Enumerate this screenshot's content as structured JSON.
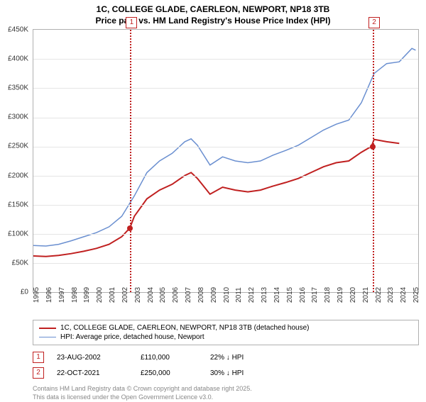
{
  "title_line1": "1C, COLLEGE GLADE, CAERLEON, NEWPORT, NP18 3TB",
  "title_line2": "Price paid vs. HM Land Registry's House Price Index (HPI)",
  "chart": {
    "type": "line",
    "background_color": "#ffffff",
    "grid_color": "#e5e5e5",
    "border_color": "#b0b0b0",
    "x_range": [
      1995,
      2025.5
    ],
    "x_ticks": [
      1995,
      1996,
      1997,
      1998,
      1999,
      2000,
      2001,
      2002,
      2003,
      2004,
      2005,
      2006,
      2007,
      2008,
      2009,
      2010,
      2011,
      2012,
      2013,
      2014,
      2015,
      2016,
      2017,
      2018,
      2019,
      2020,
      2021,
      2022,
      2023,
      2024,
      2025
    ],
    "x_fontsize": 10,
    "y_range": [
      0,
      450000
    ],
    "y_ticks": [
      0,
      50000,
      100000,
      150000,
      200000,
      250000,
      300000,
      350000,
      400000,
      450000
    ],
    "y_tick_labels": [
      "£0",
      "£50K",
      "£100K",
      "£150K",
      "£200K",
      "£250K",
      "£300K",
      "£350K",
      "£400K",
      "£450K"
    ],
    "y_fontsize": 10,
    "series": [
      {
        "name": "price_paid",
        "label": "1C, COLLEGE GLADE, CAERLEON, NEWPORT, NP18 3TB (detached house)",
        "color": "#c02020",
        "line_width": 2,
        "points": [
          [
            1995,
            62000
          ],
          [
            1996,
            61000
          ],
          [
            1997,
            63000
          ],
          [
            1998,
            66000
          ],
          [
            1999,
            70000
          ],
          [
            2000,
            75000
          ],
          [
            2001,
            82000
          ],
          [
            2002,
            95000
          ],
          [
            2002.65,
            110000
          ],
          [
            2003,
            130000
          ],
          [
            2004,
            160000
          ],
          [
            2005,
            175000
          ],
          [
            2006,
            185000
          ],
          [
            2007,
            200000
          ],
          [
            2007.5,
            205000
          ],
          [
            2008,
            195000
          ],
          [
            2009,
            168000
          ],
          [
            2010,
            180000
          ],
          [
            2011,
            175000
          ],
          [
            2012,
            172000
          ],
          [
            2013,
            175000
          ],
          [
            2014,
            182000
          ],
          [
            2015,
            188000
          ],
          [
            2016,
            195000
          ],
          [
            2017,
            205000
          ],
          [
            2018,
            215000
          ],
          [
            2019,
            222000
          ],
          [
            2020,
            225000
          ],
          [
            2021,
            240000
          ],
          [
            2021.8,
            250000
          ],
          [
            2022,
            262000
          ],
          [
            2023,
            258000
          ],
          [
            2024,
            255000
          ]
        ]
      },
      {
        "name": "hpi",
        "label": "HPI: Average price, detached house, Newport",
        "color": "#6a8fd0",
        "line_width": 1.5,
        "points": [
          [
            1995,
            80000
          ],
          [
            1996,
            79000
          ],
          [
            1997,
            82000
          ],
          [
            1998,
            88000
          ],
          [
            1999,
            95000
          ],
          [
            2000,
            102000
          ],
          [
            2001,
            112000
          ],
          [
            2002,
            130000
          ],
          [
            2003,
            165000
          ],
          [
            2004,
            205000
          ],
          [
            2005,
            225000
          ],
          [
            2006,
            238000
          ],
          [
            2007,
            258000
          ],
          [
            2007.5,
            263000
          ],
          [
            2008,
            252000
          ],
          [
            2009,
            218000
          ],
          [
            2010,
            232000
          ],
          [
            2011,
            225000
          ],
          [
            2012,
            222000
          ],
          [
            2013,
            225000
          ],
          [
            2014,
            235000
          ],
          [
            2015,
            243000
          ],
          [
            2016,
            252000
          ],
          [
            2017,
            265000
          ],
          [
            2018,
            278000
          ],
          [
            2019,
            288000
          ],
          [
            2020,
            295000
          ],
          [
            2021,
            325000
          ],
          [
            2022,
            375000
          ],
          [
            2023,
            392000
          ],
          [
            2024,
            395000
          ],
          [
            2025,
            418000
          ],
          [
            2025.3,
            415000
          ]
        ]
      }
    ],
    "markers": [
      {
        "id": "1",
        "x": 2002.65,
        "y": 110000,
        "color": "#c02020"
      },
      {
        "id": "2",
        "x": 2021.8,
        "y": 250000,
        "color": "#c02020"
      }
    ]
  },
  "legend": {
    "items": [
      {
        "color": "#c02020",
        "width": 2,
        "label": "1C, COLLEGE GLADE, CAERLEON, NEWPORT, NP18 3TB (detached house)"
      },
      {
        "color": "#6a8fd0",
        "width": 1.5,
        "label": "HPI: Average price, detached house, Newport"
      }
    ]
  },
  "transactions": [
    {
      "id": "1",
      "date": "23-AUG-2002",
      "price": "£110,000",
      "delta": "22% ↓ HPI"
    },
    {
      "id": "2",
      "date": "22-OCT-2021",
      "price": "£250,000",
      "delta": "30% ↓ HPI"
    }
  ],
  "footer_line1": "Contains HM Land Registry data © Crown copyright and database right 2025.",
  "footer_line2": "This data is licensed under the Open Government Licence v3.0."
}
